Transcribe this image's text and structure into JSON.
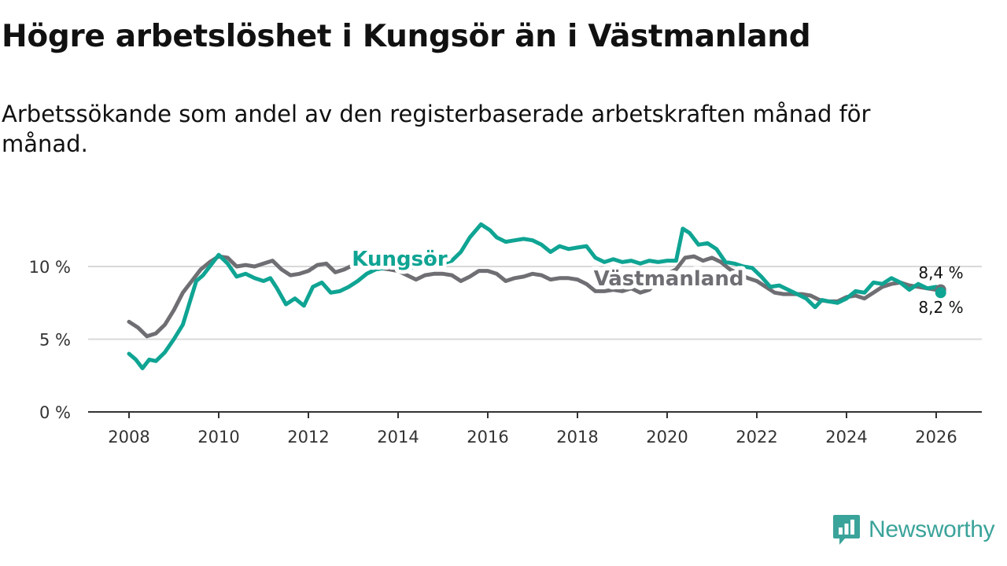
{
  "title": "Högre arbetslöshet i Kungsör än i Västmanland",
  "subtitle": "Arbetssökande som andel av den registerbaserade arbetskraften månad för månad.",
  "brand": {
    "name": "Newsworthy",
    "icon": "newsworthy-logo-icon",
    "color": "#3aa39a"
  },
  "chart_data": {
    "type": "line",
    "title": "Högre arbetslöshet i Kungsör än i Västmanland",
    "subtitle": "Arbetssökande som andel av den registerbaserade arbetskraften månad för månad.",
    "xlabel": "",
    "ylabel": "",
    "xlim": [
      2007.5,
      2027.0
    ],
    "ylim": [
      0,
      12.5
    ],
    "yticks": [
      0,
      5,
      10
    ],
    "ytick_labels": [
      "0 %",
      "5 %",
      "10 %"
    ],
    "xticks": [
      2008,
      2010,
      2012,
      2014,
      2016,
      2018,
      2020,
      2022,
      2024,
      2026
    ],
    "xtick_labels": [
      "2008",
      "2010",
      "2012",
      "2014",
      "2016",
      "2018",
      "2020",
      "2022",
      "2024",
      "2026"
    ],
    "grid": true,
    "series": [
      {
        "name": "Västmanland",
        "color": "#6f6e73",
        "label_text": "Västmanland",
        "end_label": "8,4 %",
        "end_value": 8.4,
        "points": [
          [
            2008.0,
            6.2
          ],
          [
            2008.2,
            5.8
          ],
          [
            2008.4,
            5.2
          ],
          [
            2008.6,
            5.4
          ],
          [
            2008.8,
            6.0
          ],
          [
            2009.0,
            7.0
          ],
          [
            2009.2,
            8.2
          ],
          [
            2009.4,
            9.0
          ],
          [
            2009.6,
            9.8
          ],
          [
            2009.8,
            10.3
          ],
          [
            2010.0,
            10.7
          ],
          [
            2010.2,
            10.6
          ],
          [
            2010.4,
            10.0
          ],
          [
            2010.6,
            10.1
          ],
          [
            2010.8,
            10.0
          ],
          [
            2011.0,
            10.2
          ],
          [
            2011.2,
            10.4
          ],
          [
            2011.4,
            9.8
          ],
          [
            2011.6,
            9.4
          ],
          [
            2011.8,
            9.5
          ],
          [
            2012.0,
            9.7
          ],
          [
            2012.2,
            10.1
          ],
          [
            2012.4,
            10.2
          ],
          [
            2012.6,
            9.6
          ],
          [
            2012.8,
            9.8
          ],
          [
            2013.0,
            10.1
          ],
          [
            2013.2,
            10.4
          ],
          [
            2013.4,
            10.1
          ],
          [
            2013.6,
            9.9
          ],
          [
            2013.8,
            9.8
          ],
          [
            2014.0,
            9.7
          ],
          [
            2014.2,
            9.4
          ],
          [
            2014.4,
            9.1
          ],
          [
            2014.6,
            9.4
          ],
          [
            2014.8,
            9.5
          ],
          [
            2015.0,
            9.5
          ],
          [
            2015.2,
            9.4
          ],
          [
            2015.4,
            9.0
          ],
          [
            2015.6,
            9.3
          ],
          [
            2015.8,
            9.7
          ],
          [
            2016.0,
            9.7
          ],
          [
            2016.2,
            9.5
          ],
          [
            2016.4,
            9.0
          ],
          [
            2016.6,
            9.2
          ],
          [
            2016.8,
            9.3
          ],
          [
            2017.0,
            9.5
          ],
          [
            2017.2,
            9.4
          ],
          [
            2017.4,
            9.1
          ],
          [
            2017.6,
            9.2
          ],
          [
            2017.8,
            9.2
          ],
          [
            2018.0,
            9.1
          ],
          [
            2018.2,
            8.8
          ],
          [
            2018.4,
            8.3
          ],
          [
            2018.6,
            8.3
          ],
          [
            2018.8,
            8.4
          ],
          [
            2019.0,
            8.3
          ],
          [
            2019.2,
            8.5
          ],
          [
            2019.4,
            8.2
          ],
          [
            2019.6,
            8.4
          ],
          [
            2019.8,
            9.0
          ],
          [
            2020.0,
            9.5
          ],
          [
            2020.2,
            9.8
          ],
          [
            2020.4,
            10.6
          ],
          [
            2020.6,
            10.7
          ],
          [
            2020.8,
            10.4
          ],
          [
            2021.0,
            10.6
          ],
          [
            2021.2,
            10.3
          ],
          [
            2021.4,
            9.8
          ],
          [
            2021.6,
            9.5
          ],
          [
            2021.8,
            9.2
          ],
          [
            2022.0,
            9.0
          ],
          [
            2022.2,
            8.6
          ],
          [
            2022.4,
            8.2
          ],
          [
            2022.6,
            8.1
          ],
          [
            2022.8,
            8.1
          ],
          [
            2023.0,
            8.1
          ],
          [
            2023.2,
            8.0
          ],
          [
            2023.4,
            7.7
          ],
          [
            2023.6,
            7.6
          ],
          [
            2023.8,
            7.6
          ],
          [
            2024.0,
            7.9
          ],
          [
            2024.2,
            8.0
          ],
          [
            2024.4,
            7.8
          ],
          [
            2024.6,
            8.2
          ],
          [
            2024.8,
            8.6
          ],
          [
            2025.0,
            8.8
          ],
          [
            2025.2,
            8.9
          ],
          [
            2025.4,
            8.7
          ],
          [
            2025.6,
            8.6
          ],
          [
            2025.8,
            8.5
          ],
          [
            2026.0,
            8.4
          ],
          [
            2026.1,
            8.4
          ]
        ]
      },
      {
        "name": "Kungsör",
        "color": "#0fa493",
        "label_text": "Kungsör",
        "end_label": "8,2 %",
        "end_value": 8.2,
        "points": [
          [
            2008.0,
            4.0
          ],
          [
            2008.15,
            3.6
          ],
          [
            2008.3,
            3.0
          ],
          [
            2008.45,
            3.6
          ],
          [
            2008.6,
            3.5
          ],
          [
            2008.8,
            4.1
          ],
          [
            2009.0,
            5.0
          ],
          [
            2009.2,
            6.0
          ],
          [
            2009.35,
            7.5
          ],
          [
            2009.5,
            9.0
          ],
          [
            2009.65,
            9.4
          ],
          [
            2009.8,
            10.0
          ],
          [
            2010.0,
            10.8
          ],
          [
            2010.2,
            10.2
          ],
          [
            2010.4,
            9.3
          ],
          [
            2010.6,
            9.5
          ],
          [
            2010.8,
            9.2
          ],
          [
            2011.0,
            9.0
          ],
          [
            2011.15,
            9.2
          ],
          [
            2011.3,
            8.5
          ],
          [
            2011.5,
            7.4
          ],
          [
            2011.7,
            7.8
          ],
          [
            2011.9,
            7.3
          ],
          [
            2012.1,
            8.6
          ],
          [
            2012.3,
            8.9
          ],
          [
            2012.5,
            8.2
          ],
          [
            2012.7,
            8.3
          ],
          [
            2012.9,
            8.6
          ],
          [
            2013.1,
            9.0
          ],
          [
            2013.3,
            9.5
          ],
          [
            2013.5,
            9.8
          ],
          [
            2013.7,
            9.9
          ],
          [
            2013.85,
            10.1
          ],
          [
            2014.0,
            10.0
          ],
          [
            2014.2,
            9.8
          ],
          [
            2014.4,
            10.0
          ],
          [
            2014.6,
            10.2
          ],
          [
            2014.8,
            10.4
          ],
          [
            2015.0,
            10.2
          ],
          [
            2015.2,
            10.4
          ],
          [
            2015.4,
            11.0
          ],
          [
            2015.6,
            12.0
          ],
          [
            2015.85,
            12.9
          ],
          [
            2016.05,
            12.5
          ],
          [
            2016.2,
            12.0
          ],
          [
            2016.4,
            11.7
          ],
          [
            2016.6,
            11.8
          ],
          [
            2016.8,
            11.9
          ],
          [
            2017.0,
            11.8
          ],
          [
            2017.2,
            11.5
          ],
          [
            2017.4,
            11.0
          ],
          [
            2017.6,
            11.4
          ],
          [
            2017.8,
            11.2
          ],
          [
            2018.0,
            11.3
          ],
          [
            2018.2,
            11.4
          ],
          [
            2018.4,
            10.6
          ],
          [
            2018.6,
            10.3
          ],
          [
            2018.8,
            10.5
          ],
          [
            2019.0,
            10.3
          ],
          [
            2019.2,
            10.4
          ],
          [
            2019.4,
            10.2
          ],
          [
            2019.6,
            10.4
          ],
          [
            2019.8,
            10.3
          ],
          [
            2020.0,
            10.4
          ],
          [
            2020.2,
            10.4
          ],
          [
            2020.35,
            12.6
          ],
          [
            2020.5,
            12.3
          ],
          [
            2020.7,
            11.5
          ],
          [
            2020.9,
            11.6
          ],
          [
            2021.1,
            11.2
          ],
          [
            2021.3,
            10.3
          ],
          [
            2021.5,
            10.2
          ],
          [
            2021.7,
            10.0
          ],
          [
            2021.9,
            9.9
          ],
          [
            2022.1,
            9.3
          ],
          [
            2022.3,
            8.6
          ],
          [
            2022.5,
            8.7
          ],
          [
            2022.7,
            8.4
          ],
          [
            2022.9,
            8.1
          ],
          [
            2023.1,
            7.8
          ],
          [
            2023.3,
            7.2
          ],
          [
            2023.45,
            7.7
          ],
          [
            2023.6,
            7.6
          ],
          [
            2023.8,
            7.5
          ],
          [
            2024.0,
            7.8
          ],
          [
            2024.2,
            8.3
          ],
          [
            2024.4,
            8.2
          ],
          [
            2024.6,
            8.9
          ],
          [
            2024.8,
            8.8
          ],
          [
            2025.0,
            9.2
          ],
          [
            2025.2,
            8.9
          ],
          [
            2025.4,
            8.4
          ],
          [
            2025.6,
            8.8
          ],
          [
            2025.8,
            8.5
          ],
          [
            2026.0,
            8.6
          ],
          [
            2026.1,
            8.2
          ]
        ]
      }
    ]
  }
}
